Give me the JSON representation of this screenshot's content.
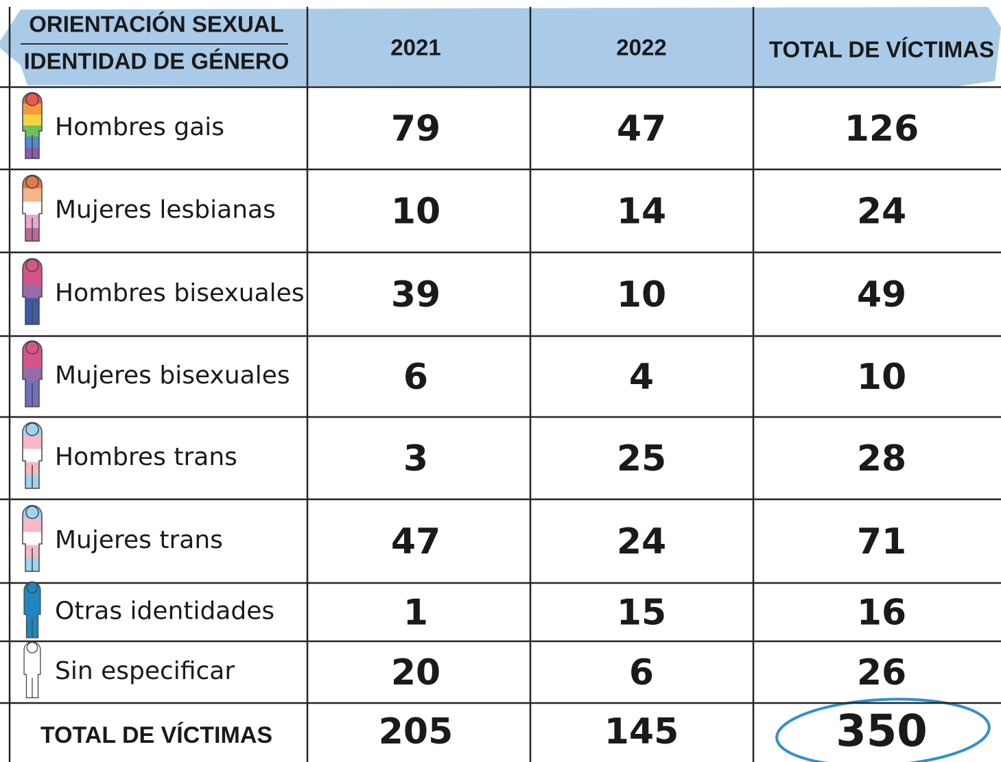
{
  "header": {
    "label_lines": [
      "ORIENTACIÓN SEXUAL",
      "IDENTIDAD DE GÉNERO"
    ],
    "columns": [
      "2021",
      "2022",
      "TOTAL DE VÍCTIMAS"
    ]
  },
  "rows": [
    {
      "label": "Hombres gais",
      "values": [
        79,
        47,
        126
      ]
    },
    {
      "label": "Mujeres lesbianas",
      "values": [
        10,
        14,
        24
      ]
    },
    {
      "label": "Hombres bisexuales",
      "values": [
        39,
        10,
        49
      ]
    },
    {
      "label": "Mujeres bisexuales",
      "values": [
        6,
        4,
        10
      ]
    },
    {
      "label": "Hombres trans",
      "values": [
        3,
        25,
        28
      ]
    },
    {
      "label": "Mujeres trans",
      "values": [
        47,
        24,
        71
      ]
    },
    {
      "label": "Otras identidades",
      "values": [
        1,
        15,
        16
      ]
    },
    {
      "label": "Sin especificar",
      "values": [
        20,
        6,
        26
      ]
    }
  ],
  "total": {
    "label": "TOTAL DE VÍCTIMAS",
    "values": [
      205,
      145,
      350
    ]
  }
}
